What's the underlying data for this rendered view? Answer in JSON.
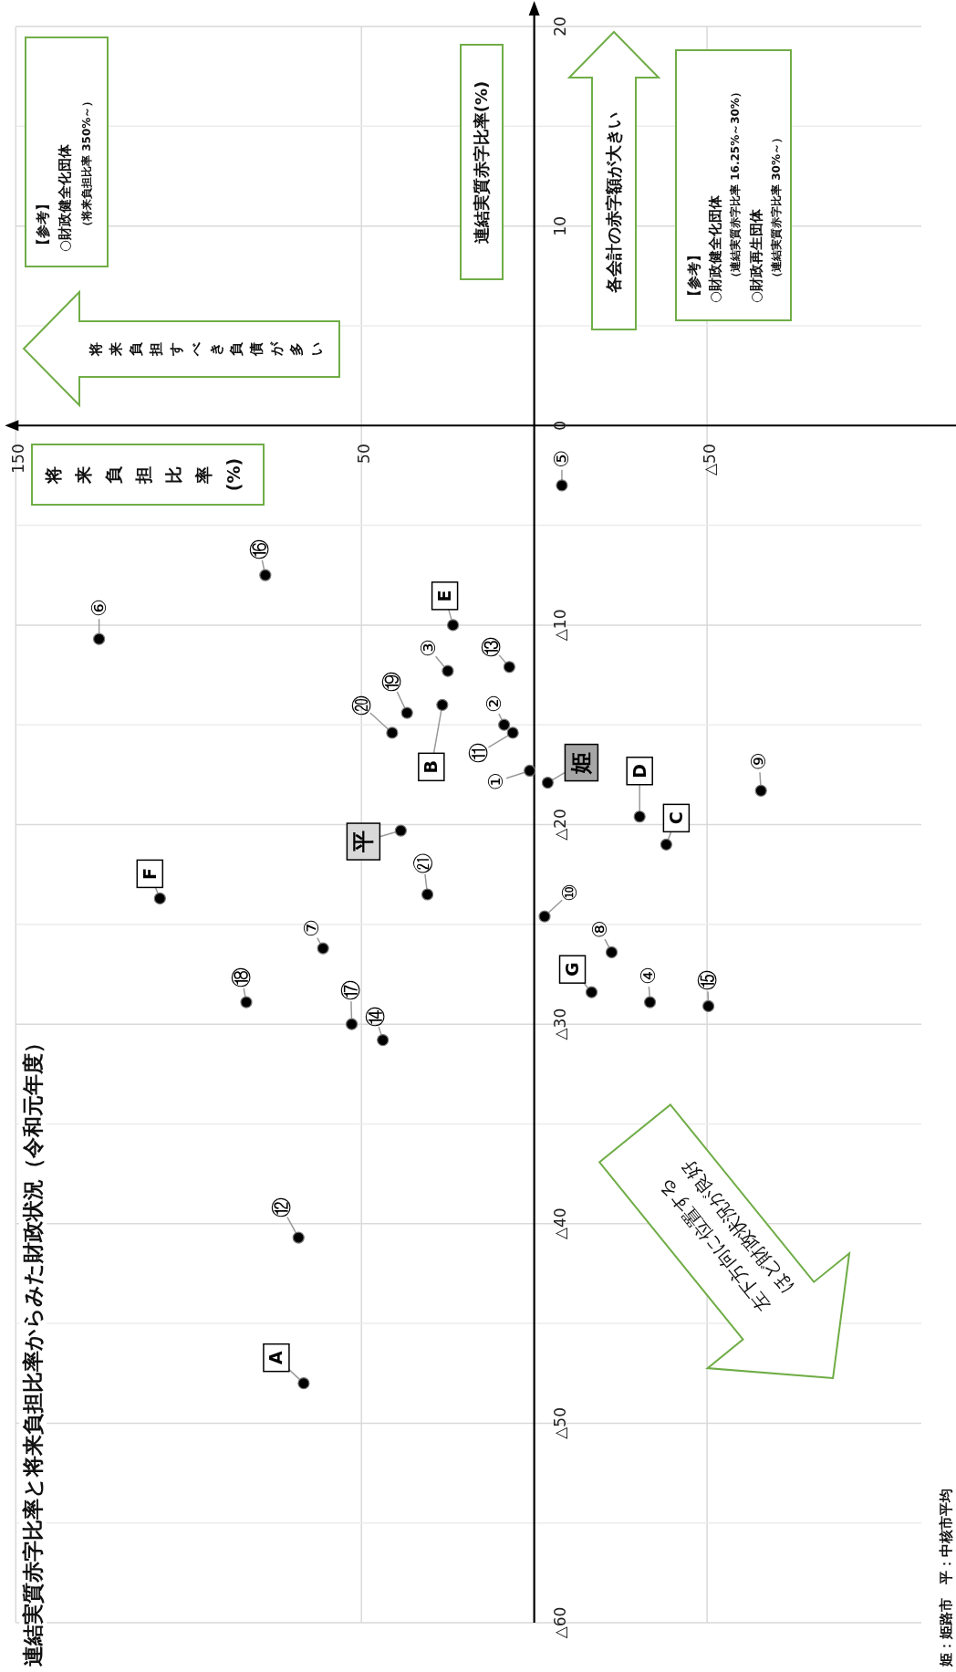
{
  "chart_data": {
    "type": "scatter",
    "title": "連結実質赤字比率と将来負担比率からみた財政状況（令和元年度）",
    "ylabel": "連結実質赤字比率(%)",
    "xlim": [
      150,
      -112
    ],
    "ylim": [
      -60,
      20
    ],
    "xticks": [
      150,
      50,
      {
        "value": -50,
        "label": "△50"
      }
    ],
    "yticks": [
      20,
      {
        "value": 15,
        "label": null
      },
      10,
      {
        "value": 5,
        "label": null
      },
      0,
      {
        "value": -5,
        "label": null
      },
      {
        "value": -10,
        "label": "△10"
      },
      {
        "value": -15,
        "label": null
      },
      {
        "value": -20,
        "label": "△20"
      },
      {
        "value": -25,
        "label": null
      },
      {
        "value": -30,
        "label": "△30"
      },
      {
        "value": -35,
        "label": null
      },
      {
        "value": -40,
        "label": "△40"
      },
      {
        "value": -45,
        "label": null
      },
      {
        "value": -50,
        "label": "△50"
      },
      {
        "value": -55,
        "label": null
      },
      {
        "value": -60,
        "label": "△60"
      }
    ],
    "grid": true,
    "marker": "circle",
    "series": [
      {
        "color": "#000000",
        "x": [
          1.3,
          8.7,
          25.0,
          -33.5,
          -8.0,
          125.9,
          61.1,
          -22.4,
          -65.6,
          -3.0,
          6.2,
          68.2,
          7.2,
          43.8,
          -50.4,
          77.8,
          52.8,
          83.3,
          36.8,
          41.1,
          30.9,
          66.7,
          26.6,
          -38.2,
          -30.5,
          23.5,
          108.3,
          -16.6,
          -3.9,
          38.6
        ],
        "values": [
          -17.3,
          -15.0,
          -12.3,
          -28.9,
          -3.0,
          -10.7,
          -26.2,
          -26.4,
          -18.3,
          -24.6,
          -15.4,
          -40.7,
          -12.1,
          -30.8,
          -29.1,
          -7.5,
          -30.0,
          -28.9,
          -14.4,
          -15.4,
          -23.5,
          -48.0,
          -14.0,
          -21.0,
          -19.6,
          -10.0,
          -23.7,
          -28.4,
          -17.9,
          -20.3
        ]
      }
    ],
    "annotations": [
      {
        "text": "①",
        "x": 1.3,
        "y": -17.3
      },
      {
        "text": "②",
        "x": 8.7,
        "y": -15.0
      },
      {
        "text": "③",
        "x": 25.0,
        "y": -12.3
      },
      {
        "text": "④",
        "x": -33.5,
        "y": -28.9
      },
      {
        "text": "⑤",
        "x": -8.0,
        "y": -3.0
      },
      {
        "text": "⑥",
        "x": 125.9,
        "y": -10.7
      },
      {
        "text": "⑦",
        "x": 61.1,
        "y": -26.2
      },
      {
        "text": "⑧",
        "x": -22.4,
        "y": -26.4
      },
      {
        "text": "⑨",
        "x": -65.6,
        "y": -18.3
      },
      {
        "text": "⑩",
        "x": -3.0,
        "y": -24.6
      },
      {
        "text": "⑪",
        "x": 6.2,
        "y": -15.4
      },
      {
        "text": "⑫",
        "x": 68.2,
        "y": -40.7
      },
      {
        "text": "⑬",
        "x": 7.2,
        "y": -12.1
      },
      {
        "text": "⑭",
        "x": 43.8,
        "y": -30.8
      },
      {
        "text": "⑮",
        "x": -50.4,
        "y": -29.1
      },
      {
        "text": "⑯",
        "x": 77.8,
        "y": -7.5
      },
      {
        "text": "⑰",
        "x": 52.8,
        "y": -30.0
      },
      {
        "text": "⑱",
        "x": 83.3,
        "y": -28.9
      },
      {
        "text": "⑲",
        "x": 36.8,
        "y": -14.4
      },
      {
        "text": "⑳",
        "x": 41.1,
        "y": -15.4
      },
      {
        "text": "㉑",
        "x": 30.9,
        "y": -23.5
      },
      {
        "text": "A",
        "x": 66.7,
        "y": -48.0
      },
      {
        "text": "B",
        "x": 26.6,
        "y": -14.0
      },
      {
        "text": "C",
        "x": -38.2,
        "y": -21.0
      },
      {
        "text": "D",
        "x": -30.5,
        "y": -19.6
      },
      {
        "text": "E",
        "x": 23.5,
        "y": -10.0
      },
      {
        "text": "F",
        "x": 108.3,
        "y": -23.7
      },
      {
        "text": "G",
        "x": -16.6,
        "y": -28.4
      },
      {
        "text": "姫",
        "x": -3.9,
        "y": -17.9
      },
      {
        "text": "平",
        "x": 38.6,
        "y": -20.3
      },
      "【参考】",
      "○財政健全化団体",
      "（将来負担比率 350%～）",
      "【参考】",
      "○財政健全化団体",
      "（連結実質赤字比率 16.25%～30%）",
      "○財政再生団体",
      "（連結実質赤字比率 30%～）",
      "将来負担すべき負債が多い",
      "各会計の赤字額が大きい",
      "左下方向に位置する",
      "ほど財政状況が良好",
      "姫：姫路市　平：中核市平均",
      "将来負担比率(%)"
    ]
  }
}
